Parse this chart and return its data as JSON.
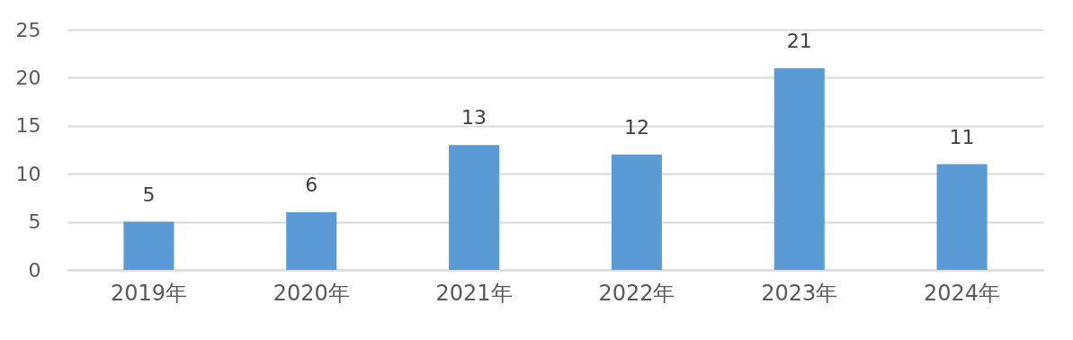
{
  "chart_data": {
    "type": "bar",
    "categories": [
      "2019年",
      "2020年",
      "2021年",
      "2022年",
      "2023年",
      "2024年"
    ],
    "values": [
      5,
      6,
      13,
      12,
      21,
      11
    ],
    "color": "#5b9bd5",
    "ylim": [
      0,
      25
    ],
    "yticks": [
      0,
      5,
      10,
      15,
      20,
      25
    ],
    "grid": "y",
    "data_labels": true
  }
}
